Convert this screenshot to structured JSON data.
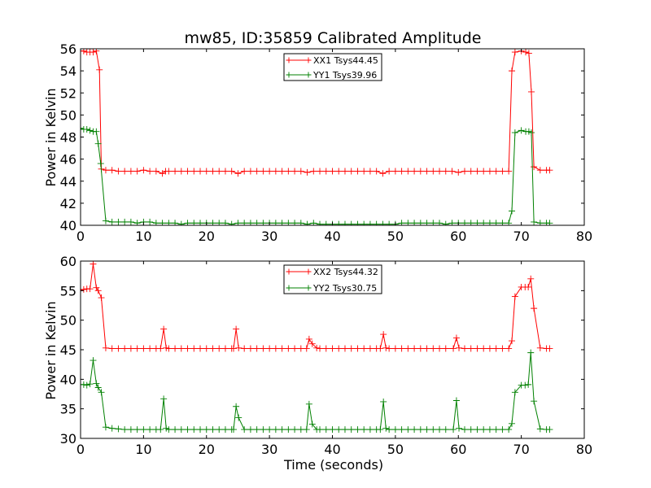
{
  "chart_data": [
    {
      "type": "line",
      "title": "mw85, ID:35859 Calibrated Amplitude",
      "xlabel": "",
      "ylabel": "Power in Kelvin",
      "xlim": [
        0,
        80
      ],
      "ylim": [
        40,
        56
      ],
      "xticks": [
        0,
        10,
        20,
        30,
        40,
        50,
        60,
        70,
        80
      ],
      "yticks": [
        40,
        42,
        44,
        46,
        48,
        50,
        52,
        54,
        56
      ],
      "grid": false,
      "legend_position": "top-center",
      "marker": "plus",
      "series": [
        {
          "name": "XX1 Tsys44.45",
          "color": "#ff0000",
          "x": [
            0,
            0.5,
            1,
            1.5,
            2,
            2.5,
            3,
            3.3,
            4,
            5,
            6,
            7,
            8,
            9,
            10,
            11,
            12,
            13,
            13.5,
            14,
            15,
            16,
            17,
            18,
            19,
            20,
            21,
            22,
            23,
            24,
            25,
            26,
            27,
            28,
            29,
            30,
            31,
            32,
            33,
            34,
            35,
            36,
            37,
            38,
            39,
            40,
            41,
            42,
            43,
            44,
            45,
            46,
            47,
            48,
            49,
            50,
            51,
            52,
            53,
            54,
            55,
            56,
            57,
            58,
            59,
            60,
            61,
            62,
            63,
            64,
            65,
            66,
            67,
            68,
            68.5,
            69,
            70,
            70.7,
            71.2,
            71.6,
            72,
            73,
            74,
            74.5
          ],
          "y": [
            55.8,
            55.8,
            55.7,
            55.7,
            55.7,
            55.8,
            54.1,
            45.1,
            45.0,
            45.0,
            44.9,
            44.9,
            44.9,
            44.9,
            45.0,
            44.9,
            44.9,
            44.7,
            44.9,
            44.9,
            44.9,
            44.9,
            44.9,
            44.9,
            44.9,
            44.9,
            44.9,
            44.9,
            44.9,
            44.9,
            44.7,
            44.9,
            44.9,
            44.9,
            44.9,
            44.9,
            44.9,
            44.9,
            44.9,
            44.9,
            44.9,
            44.8,
            44.9,
            44.9,
            44.9,
            44.9,
            44.9,
            44.9,
            44.9,
            44.9,
            44.9,
            44.9,
            44.9,
            44.7,
            44.9,
            44.9,
            44.9,
            44.9,
            44.9,
            44.9,
            44.9,
            44.9,
            44.9,
            44.9,
            44.9,
            44.8,
            44.9,
            44.9,
            44.9,
            44.9,
            44.9,
            44.9,
            44.9,
            44.9,
            54.0,
            55.7,
            55.8,
            55.7,
            55.6,
            52.1,
            45.3,
            45.0,
            45.0,
            45.0
          ]
        },
        {
          "name": "YY1 Tsys39.96",
          "color": "#008000",
          "x": [
            0,
            0.5,
            1,
            1.5,
            2,
            2.5,
            2.8,
            3.2,
            4,
            5,
            6,
            7,
            8,
            9,
            10,
            11,
            12,
            13,
            14,
            15,
            16,
            17,
            18,
            19,
            20,
            21,
            22,
            23,
            24,
            25,
            26,
            27,
            28,
            29,
            30,
            31,
            32,
            33,
            34,
            35,
            36,
            37,
            38,
            39,
            40,
            41,
            42,
            43,
            44,
            45,
            46,
            47,
            48,
            49,
            50,
            51,
            52,
            53,
            54,
            55,
            56,
            57,
            58,
            59,
            60,
            61,
            62,
            63,
            64,
            65,
            66,
            67,
            68,
            68.5,
            69,
            70,
            70.7,
            71.2,
            71.6,
            72,
            73,
            74,
            74.5
          ],
          "y": [
            48.8,
            48.7,
            48.7,
            48.6,
            48.5,
            48.5,
            47.4,
            45.6,
            40.4,
            40.3,
            40.3,
            40.3,
            40.3,
            40.2,
            40.3,
            40.3,
            40.2,
            40.2,
            40.2,
            40.2,
            40.1,
            40.2,
            40.2,
            40.2,
            40.2,
            40.2,
            40.2,
            40.2,
            40.1,
            40.2,
            40.2,
            40.2,
            40.2,
            40.2,
            40.2,
            40.2,
            40.2,
            40.2,
            40.2,
            40.2,
            40.1,
            40.2,
            40.1,
            40.1,
            40.1,
            40.1,
            40.1,
            40.1,
            40.1,
            40.1,
            40.1,
            40.1,
            40.1,
            40.1,
            40.1,
            40.2,
            40.2,
            40.2,
            40.2,
            40.2,
            40.2,
            40.2,
            40.1,
            40.2,
            40.2,
            40.2,
            40.2,
            40.2,
            40.2,
            40.2,
            40.2,
            40.2,
            40.2,
            41.3,
            48.4,
            48.6,
            48.5,
            48.5,
            48.4,
            40.3,
            40.2,
            40.2,
            40.2
          ]
        }
      ]
    },
    {
      "type": "line",
      "title": "",
      "xlabel": "Time (seconds)",
      "ylabel": "Power in Kelvin",
      "xlim": [
        0,
        80
      ],
      "ylim": [
        30,
        60
      ],
      "xticks": [
        0,
        10,
        20,
        30,
        40,
        50,
        60,
        70,
        80
      ],
      "yticks": [
        30,
        35,
        40,
        45,
        50,
        55,
        60
      ],
      "grid": false,
      "legend_position": "top-center",
      "marker": "plus",
      "series": [
        {
          "name": "XX2 Tsys44.32",
          "color": "#ff0000",
          "x": [
            0,
            0.5,
            1,
            1.5,
            2,
            2.5,
            2.8,
            3.3,
            4,
            5,
            6,
            7,
            8,
            9,
            10,
            11,
            12,
            12.7,
            13.2,
            13.6,
            14,
            15,
            16,
            17,
            18,
            19,
            20,
            21,
            22,
            23,
            24,
            24.3,
            24.7,
            25.1,
            26,
            27,
            28,
            29,
            30,
            31,
            32,
            33,
            34,
            35,
            35.9,
            36.3,
            36.8,
            37.5,
            38,
            39,
            40,
            41,
            42,
            43,
            44,
            45,
            46,
            47,
            47.6,
            48.1,
            48.5,
            49,
            50,
            51,
            52,
            53,
            54,
            55,
            56,
            57,
            58,
            59.2,
            59.7,
            60.1,
            61,
            62,
            63,
            64,
            65,
            66,
            67,
            68,
            68.5,
            69,
            70,
            70.6,
            71.1,
            71.5,
            72,
            73,
            74,
            74.5
          ],
          "y": [
            55.1,
            55.2,
            55.3,
            55.3,
            59.5,
            55.5,
            55.0,
            53.8,
            45.3,
            45.2,
            45.2,
            45.2,
            45.2,
            45.2,
            45.2,
            45.2,
            45.2,
            45.2,
            48.5,
            45.3,
            45.2,
            45.2,
            45.2,
            45.2,
            45.2,
            45.2,
            45.2,
            45.2,
            45.2,
            45.2,
            45.2,
            45.2,
            48.5,
            45.3,
            45.2,
            45.2,
            45.2,
            45.2,
            45.2,
            45.2,
            45.2,
            45.2,
            45.2,
            45.2,
            45.2,
            46.8,
            46.0,
            45.3,
            45.2,
            45.2,
            45.2,
            45.2,
            45.2,
            45.2,
            45.2,
            45.2,
            45.2,
            45.2,
            45.2,
            47.6,
            45.3,
            45.2,
            45.2,
            45.2,
            45.2,
            45.2,
            45.2,
            45.2,
            45.2,
            45.2,
            45.2,
            45.2,
            47.0,
            45.3,
            45.2,
            45.2,
            45.2,
            45.2,
            45.2,
            45.2,
            45.2,
            45.2,
            46.5,
            54.0,
            55.6,
            55.6,
            55.6,
            57.0,
            52.0,
            45.3,
            45.2,
            45.2
          ]
        },
        {
          "name": "YY2 Tsys30.75",
          "color": "#008000",
          "x": [
            0,
            0.5,
            1,
            1.5,
            2,
            2.5,
            2.8,
            3.3,
            4,
            5,
            6,
            7,
            8,
            9,
            10,
            11,
            12,
            12.7,
            13.2,
            13.6,
            14,
            15,
            16,
            17,
            18,
            19,
            20,
            21,
            22,
            23,
            24,
            24.3,
            24.7,
            25.1,
            26,
            27,
            28,
            29,
            30,
            31,
            32,
            33,
            34,
            35,
            35.9,
            36.3,
            36.8,
            37.5,
            38,
            39,
            40,
            41,
            42,
            43,
            44,
            45,
            46,
            47,
            47.6,
            48.1,
            48.5,
            49,
            50,
            51,
            52,
            53,
            54,
            55,
            56,
            57,
            58,
            59.2,
            59.7,
            60.1,
            61,
            62,
            63,
            64,
            65,
            66,
            67,
            68,
            68.5,
            69,
            70,
            70.6,
            71.1,
            71.5,
            72,
            73,
            74,
            74.5
          ],
          "y": [
            39.1,
            39.1,
            39.0,
            39.2,
            43.2,
            39.3,
            38.6,
            37.8,
            31.9,
            31.7,
            31.6,
            31.5,
            31.5,
            31.5,
            31.5,
            31.5,
            31.5,
            31.5,
            36.7,
            31.7,
            31.5,
            31.5,
            31.5,
            31.5,
            31.5,
            31.5,
            31.5,
            31.5,
            31.5,
            31.5,
            31.5,
            31.5,
            35.4,
            33.5,
            31.5,
            31.5,
            31.5,
            31.5,
            31.5,
            31.5,
            31.5,
            31.5,
            31.5,
            31.5,
            31.5,
            35.8,
            32.4,
            31.5,
            31.5,
            31.5,
            31.5,
            31.5,
            31.5,
            31.5,
            31.5,
            31.5,
            31.5,
            31.5,
            31.5,
            36.2,
            31.7,
            31.5,
            31.5,
            31.5,
            31.5,
            31.5,
            31.5,
            31.5,
            31.5,
            31.5,
            31.5,
            31.5,
            36.4,
            31.7,
            31.5,
            31.5,
            31.5,
            31.5,
            31.5,
            31.5,
            31.5,
            31.5,
            32.5,
            37.8,
            39.0,
            39.0,
            39.1,
            44.5,
            36.3,
            31.6,
            31.5,
            31.5
          ]
        }
      ]
    }
  ]
}
